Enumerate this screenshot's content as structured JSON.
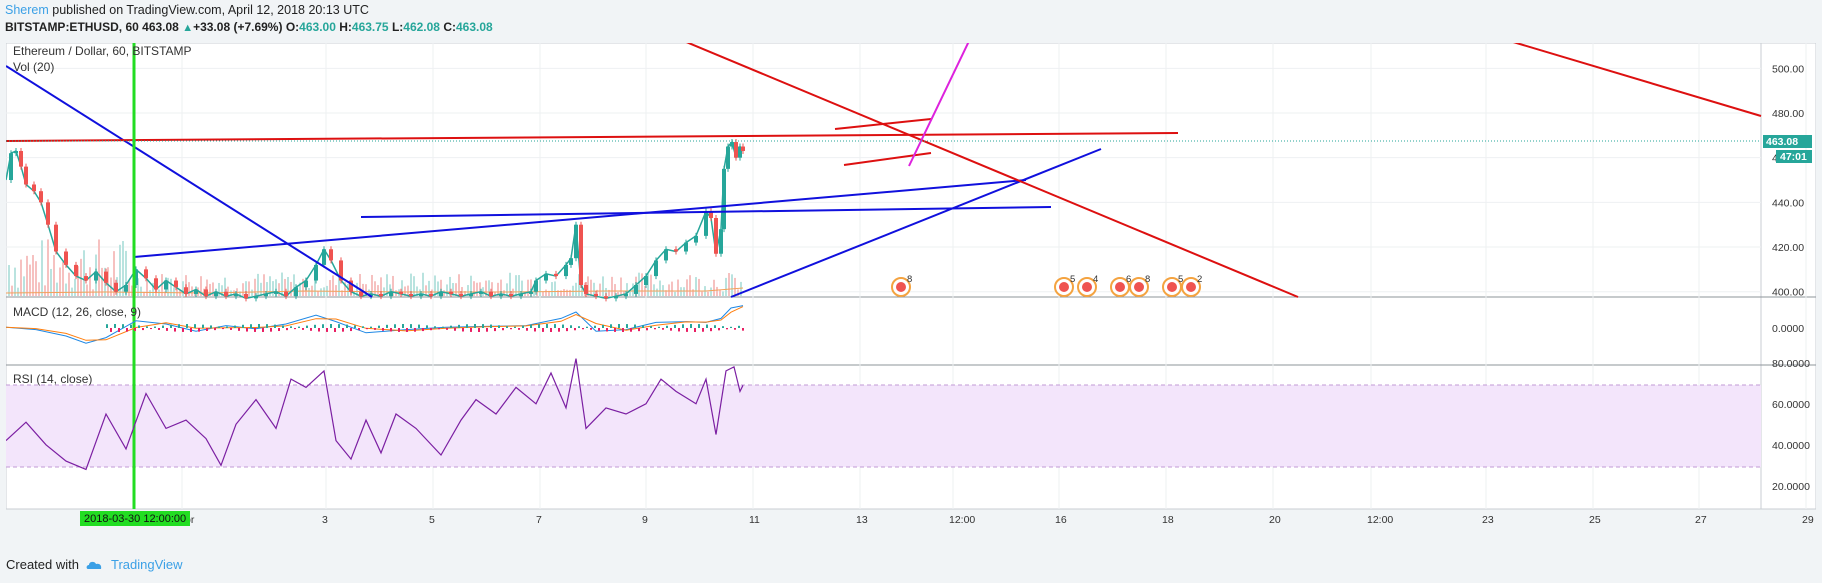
{
  "header": {
    "author": "Sherem",
    "published_text": "published on TradingView.com, April 12, 2018 20:13 UTC",
    "symbol": "BITSTAMP:ETHUSD, 60",
    "last": "463.08",
    "change_arrow": "▲",
    "change": "+33.08 (+7.69%)",
    "o_label": "O:",
    "o": "463.00",
    "h_label": "H:",
    "h": "463.75",
    "l_label": "L:",
    "l": "462.08",
    "c_label": "C:",
    "c": "463.08"
  },
  "panes": {
    "main_title": "Ethereum / Dollar, 60, BITSTAMP",
    "vol_label": "Vol (20)",
    "macd_label": "MACD (12, 26, close, 9)",
    "rsi_label": "RSI (14, close)"
  },
  "price_badge": "463.08",
  "time_badge": "47:01",
  "crosshair_time_label": "2018-03-30 12:00:00",
  "footer": {
    "created_with": "Created with",
    "brand": "TradingView"
  },
  "colors": {
    "up": "#26a69a",
    "down": "#ef5350",
    "accent": "#3ba0e6",
    "badge": "#26a69a",
    "rsi_band": "#e9d4f5",
    "rsi_line": "#7b1fa2"
  },
  "chart_data": {
    "type": "candlestick",
    "symbol": "ETHUSD",
    "interval": "60",
    "exchange": "BITSTAMP",
    "price_axis": {
      "ticks": [
        "500.00",
        "480.00",
        "460.00",
        "440.00",
        "420.00",
        "400.00"
      ],
      "range": [
        393,
        510
      ]
    },
    "macd_axis": {
      "ticks": [
        "0.0000"
      ]
    },
    "rsi_axis": {
      "ticks": [
        "80.0000",
        "60.0000",
        "40.0000",
        "20.0000"
      ],
      "range": [
        18,
        86
      ],
      "band": [
        30,
        70
      ]
    },
    "time_axis": {
      "ticks": [
        "Apr",
        "3",
        "5",
        "7",
        "9",
        "11",
        "13",
        "12:00",
        "16",
        "18",
        "20",
        "12:00",
        "23",
        "25",
        "27",
        "29"
      ]
    },
    "price_path": [
      [
        0,
        450
      ],
      [
        5,
        462
      ],
      [
        10,
        463
      ],
      [
        15,
        456
      ],
      [
        20,
        448
      ],
      [
        28,
        445
      ],
      [
        35,
        440
      ],
      [
        42,
        430
      ],
      [
        50,
        418
      ],
      [
        60,
        412
      ],
      [
        70,
        407
      ],
      [
        80,
        405
      ],
      [
        90,
        409
      ],
      [
        100,
        404
      ],
      [
        110,
        400
      ],
      [
        120,
        403
      ],
      [
        130,
        410
      ],
      [
        140,
        406
      ],
      [
        150,
        401
      ],
      [
        160,
        405
      ],
      [
        170,
        402
      ],
      [
        180,
        399
      ],
      [
        190,
        401
      ],
      [
        200,
        398
      ],
      [
        210,
        400
      ],
      [
        220,
        398
      ],
      [
        230,
        399
      ],
      [
        240,
        397
      ],
      [
        250,
        398
      ],
      [
        260,
        399
      ],
      [
        270,
        400
      ],
      [
        280,
        398
      ],
      [
        290,
        402
      ],
      [
        300,
        405
      ],
      [
        310,
        412
      ],
      [
        318,
        419
      ],
      [
        325,
        414
      ],
      [
        335,
        405
      ],
      [
        345,
        400
      ],
      [
        355,
        398
      ],
      [
        365,
        399
      ],
      [
        375,
        398
      ],
      [
        385,
        400
      ],
      [
        395,
        399
      ],
      [
        405,
        398
      ],
      [
        415,
        399
      ],
      [
        425,
        398
      ],
      [
        435,
        400
      ],
      [
        445,
        399
      ],
      [
        455,
        398
      ],
      [
        465,
        399
      ],
      [
        475,
        400
      ],
      [
        485,
        398
      ],
      [
        495,
        399
      ],
      [
        505,
        398
      ],
      [
        515,
        399
      ],
      [
        525,
        400
      ],
      [
        530,
        405
      ],
      [
        540,
        408
      ],
      [
        550,
        407
      ],
      [
        560,
        412
      ],
      [
        565,
        415
      ],
      [
        570,
        430
      ],
      [
        575,
        403
      ],
      [
        580,
        399
      ],
      [
        590,
        398
      ],
      [
        600,
        397
      ],
      [
        610,
        398
      ],
      [
        620,
        399
      ],
      [
        630,
        403
      ],
      [
        640,
        407
      ],
      [
        650,
        414
      ],
      [
        660,
        419
      ],
      [
        670,
        418
      ],
      [
        680,
        422
      ],
      [
        690,
        425
      ],
      [
        700,
        436
      ],
      [
        705,
        433
      ],
      [
        710,
        417
      ],
      [
        715,
        428
      ],
      [
        718,
        455
      ],
      [
        722,
        465
      ],
      [
        726,
        467
      ],
      [
        730,
        460
      ],
      [
        734,
        465
      ],
      [
        737,
        463
      ]
    ],
    "macd_path": [
      [
        0,
        0.05
      ],
      [
        30,
        -0.1
      ],
      [
        60,
        -0.5
      ],
      [
        80,
        -0.95
      ],
      [
        100,
        -0.6
      ],
      [
        130,
        0.45
      ],
      [
        160,
        0.25
      ],
      [
        190,
        -0.2
      ],
      [
        220,
        0.15
      ],
      [
        250,
        -0.05
      ],
      [
        280,
        0.25
      ],
      [
        310,
        0.8
      ],
      [
        330,
        0.4
      ],
      [
        360,
        -0.3
      ],
      [
        400,
        -0.1
      ],
      [
        440,
        0.05
      ],
      [
        480,
        0.1
      ],
      [
        520,
        0.15
      ],
      [
        555,
        0.6
      ],
      [
        570,
        1.0
      ],
      [
        590,
        -0.2
      ],
      [
        620,
        -0.1
      ],
      [
        650,
        0.35
      ],
      [
        680,
        0.4
      ],
      [
        700,
        0.35
      ],
      [
        715,
        0.6
      ],
      [
        725,
        1.25
      ],
      [
        737,
        1.4
      ]
    ],
    "rsi_path": [
      [
        0,
        42
      ],
      [
        20,
        51
      ],
      [
        40,
        40
      ],
      [
        60,
        32
      ],
      [
        80,
        28
      ],
      [
        100,
        55
      ],
      [
        120,
        38
      ],
      [
        140,
        65
      ],
      [
        160,
        48
      ],
      [
        180,
        52
      ],
      [
        200,
        43
      ],
      [
        215,
        30
      ],
      [
        230,
        50
      ],
      [
        250,
        62
      ],
      [
        270,
        48
      ],
      [
        285,
        72
      ],
      [
        300,
        68
      ],
      [
        318,
        76
      ],
      [
        330,
        42
      ],
      [
        345,
        33
      ],
      [
        360,
        52
      ],
      [
        375,
        36
      ],
      [
        390,
        55
      ],
      [
        410,
        48
      ],
      [
        435,
        35
      ],
      [
        455,
        52
      ],
      [
        470,
        62
      ],
      [
        490,
        55
      ],
      [
        510,
        68
      ],
      [
        530,
        60
      ],
      [
        545,
        75
      ],
      [
        560,
        58
      ],
      [
        570,
        82
      ],
      [
        580,
        48
      ],
      [
        600,
        58
      ],
      [
        620,
        55
      ],
      [
        640,
        60
      ],
      [
        655,
        72
      ],
      [
        670,
        66
      ],
      [
        690,
        60
      ],
      [
        700,
        72
      ],
      [
        710,
        45
      ],
      [
        720,
        76
      ],
      [
        728,
        78
      ],
      [
        734,
        66
      ],
      [
        737,
        69
      ]
    ]
  }
}
